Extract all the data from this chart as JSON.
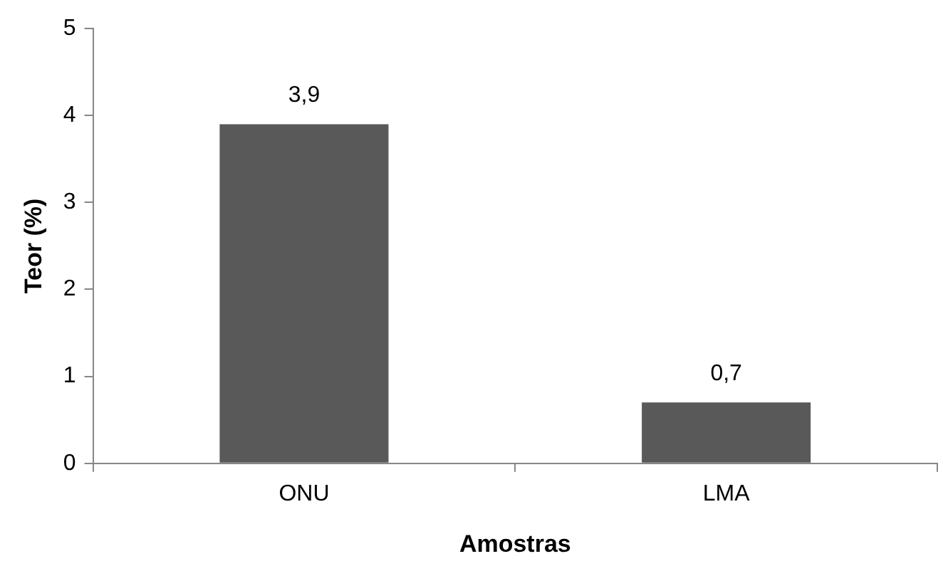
{
  "chart_data": {
    "type": "bar",
    "xlabel": "Amostras",
    "ylabel": "Teor (%)",
    "categories": [
      "ONU",
      "LMA"
    ],
    "values": [
      3.9,
      0.7
    ],
    "color": "#595959",
    "value_labels": [
      "3,9",
      "0,7"
    ],
    "ylim": [
      0,
      5
    ],
    "yticks": [
      0,
      1,
      2,
      3,
      4,
      5
    ],
    "grid": false,
    "legend": false
  }
}
